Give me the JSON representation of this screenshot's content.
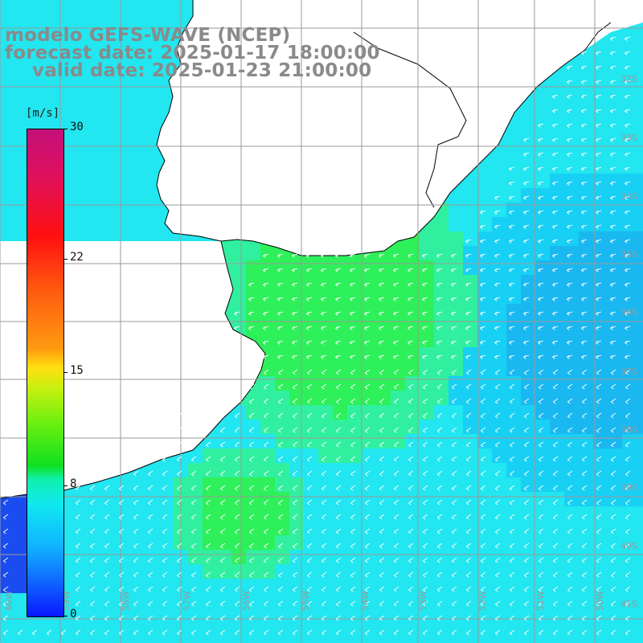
{
  "title": {
    "line1": "modelo GEFS-WAVE (NCEP)",
    "line2": "forecast date: 2025-01-17 18:00:00",
    "line3": "valid date: 2025-01-23 21:00:00"
  },
  "colorbar": {
    "unit": "[m/s]",
    "min": 0,
    "max": 30,
    "tick_labels": [
      "30",
      "22",
      "15",
      "8",
      "0"
    ],
    "tick_values": [
      30,
      22,
      15,
      8,
      0
    ]
  },
  "grid": {
    "latitude_labels": [
      "32S",
      "33S",
      "34S",
      "35S",
      "36S",
      "37S",
      "38S",
      "39S",
      "40S",
      "41S"
    ],
    "longitude_labels": [
      "60W",
      "59W",
      "58W",
      "57W",
      "56W",
      "55W",
      "54W",
      "53W",
      "52W",
      "51W",
      "50W"
    ]
  },
  "colors": {
    "land": "#ffffff",
    "coastline": "#000000",
    "gridline": "#9a9a9a",
    "arrow": "#ffffff",
    "title": "#8a8a8a"
  },
  "field": {
    "variable": "wind speed",
    "arrow_direction": "from north-east toward south-west"
  }
}
